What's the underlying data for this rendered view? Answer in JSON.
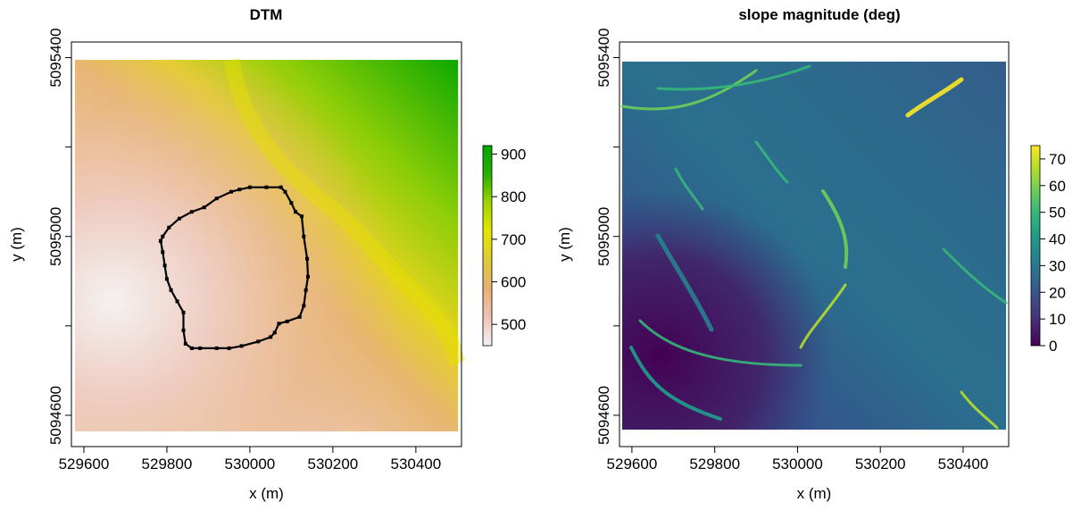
{
  "chart_data": [
    {
      "type": "heatmap",
      "title": "DTM",
      "xlabel": "x (m)",
      "ylabel": "y (m)",
      "xlim": [
        529570,
        530510
      ],
      "ylim": [
        5094530,
        5095435
      ],
      "x_ticks": [
        529600,
        529800,
        530000,
        530200,
        530400
      ],
      "x_tick_labels": [
        "529600",
        "529800",
        "530000",
        "530200",
        "530400"
      ],
      "y_ticks": [
        5094600,
        5095000,
        5095400
      ],
      "y_tick_labels": [
        "5094600",
        "5095000",
        "5095400"
      ],
      "y_minor_ticks": [
        5094800,
        5095200
      ],
      "colorbar": {
        "min": 450,
        "max": 920,
        "ticks": [
          500,
          600,
          700,
          800,
          900
        ],
        "tick_labels": [
          "500",
          "600",
          "700",
          "800",
          "900"
        ],
        "colors": [
          "#f2f2f2",
          "#edc2b4",
          "#e8b071",
          "#e0c93a",
          "#e6e600",
          "#9ed400",
          "#28b000",
          "#00a600"
        ]
      },
      "polygon_series": {
        "color": "#000000",
        "points": [
          [
            529785,
            5094990
          ],
          [
            529790,
            5095000
          ],
          [
            529805,
            5095020
          ],
          [
            529830,
            5095040
          ],
          [
            529860,
            5095055
          ],
          [
            529890,
            5095065
          ],
          [
            529920,
            5095085
          ],
          [
            529955,
            5095100
          ],
          [
            529975,
            5095105
          ],
          [
            530000,
            5095110
          ],
          [
            530040,
            5095110
          ],
          [
            530075,
            5095110
          ],
          [
            530085,
            5095100
          ],
          [
            530100,
            5095075
          ],
          [
            530110,
            5095055
          ],
          [
            530125,
            5095045
          ],
          [
            530130,
            5095000
          ],
          [
            530138,
            5094950
          ],
          [
            530140,
            5094910
          ],
          [
            530135,
            5094880
          ],
          [
            530130,
            5094845
          ],
          [
            530120,
            5094820
          ],
          [
            530090,
            5094810
          ],
          [
            530070,
            5094805
          ],
          [
            530060,
            5094785
          ],
          [
            530050,
            5094775
          ],
          [
            530020,
            5094765
          ],
          [
            529980,
            5094755
          ],
          [
            529950,
            5094750
          ],
          [
            529920,
            5094750
          ],
          [
            529880,
            5094750
          ],
          [
            529860,
            5094750
          ],
          [
            529845,
            5094760
          ],
          [
            529840,
            5094790
          ],
          [
            529840,
            5094830
          ],
          [
            529825,
            5094855
          ],
          [
            529810,
            5094880
          ],
          [
            529800,
            5094905
          ],
          [
            529795,
            5094935
          ],
          [
            529790,
            5094965
          ],
          [
            529785,
            5094990
          ]
        ]
      }
    },
    {
      "type": "heatmap",
      "title": "slope magnitude (deg)",
      "xlabel": "x (m)",
      "ylabel": "y (m)",
      "xlim": [
        529570,
        530510
      ],
      "ylim": [
        5094530,
        5095435
      ],
      "x_ticks": [
        529600,
        529800,
        530000,
        530200,
        530400
      ],
      "x_tick_labels": [
        "529600",
        "529800",
        "530000",
        "530200",
        "530400"
      ],
      "y_ticks": [
        5094600,
        5095000,
        5095400
      ],
      "y_tick_labels": [
        "5094600",
        "5095000",
        "5095400"
      ],
      "y_minor_ticks": [
        5094800,
        5095200
      ],
      "colorbar": {
        "min": 0,
        "max": 75,
        "ticks": [
          0,
          10,
          20,
          30,
          40,
          50,
          60,
          70
        ],
        "tick_labels": [
          "0",
          "10",
          "20",
          "30",
          "40",
          "50",
          "60",
          "70"
        ],
        "colors": [
          "#440154",
          "#482878",
          "#3e4a89",
          "#31688e",
          "#26828e",
          "#1f9e89",
          "#35b779",
          "#6ece58",
          "#b5de2b",
          "#fde725"
        ]
      }
    }
  ]
}
